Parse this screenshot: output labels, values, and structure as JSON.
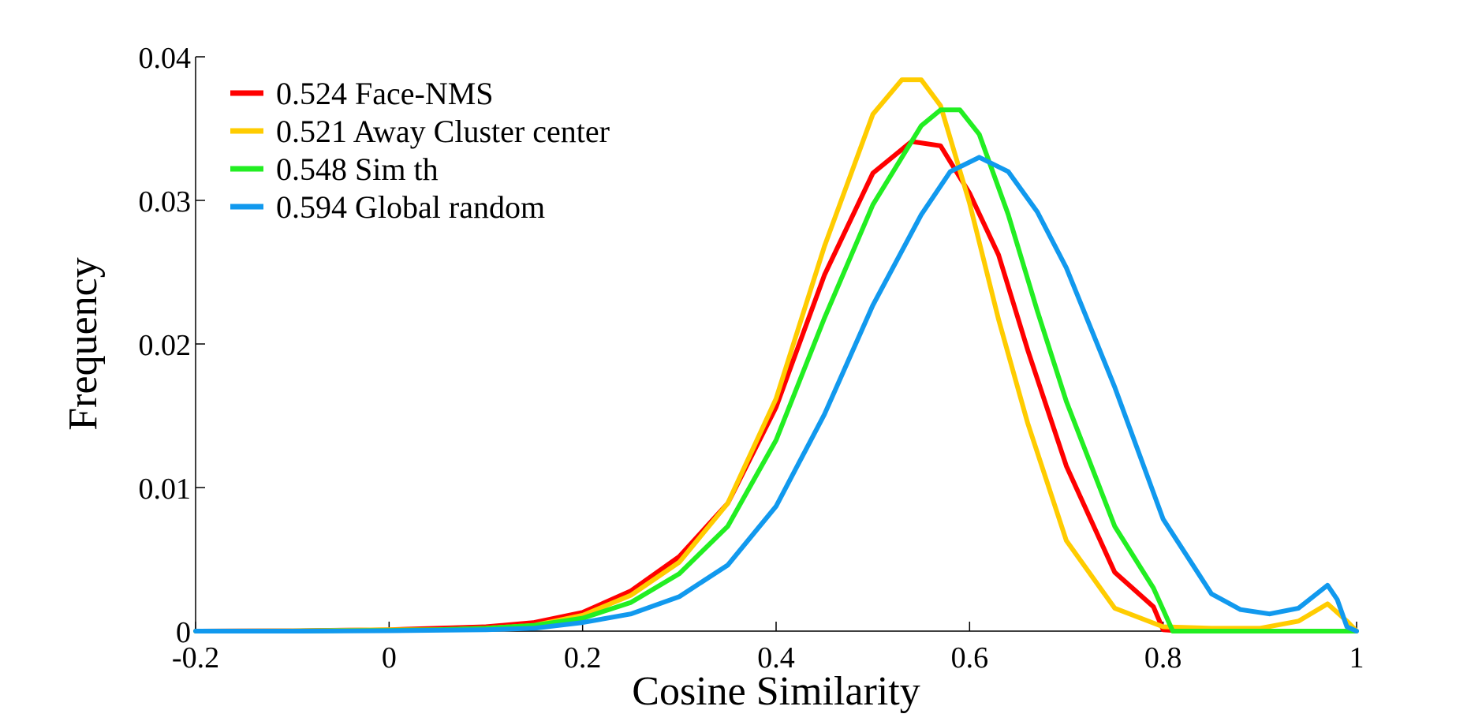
{
  "chart_data": {
    "type": "line",
    "title": "",
    "xlabel": "Cosine Similarity",
    "ylabel": "Frequency",
    "xlim": [
      -0.2,
      1
    ],
    "ylim": [
      0,
      0.04
    ],
    "xticks": [
      -0.2,
      0,
      0.2,
      0.4,
      0.6,
      0.8,
      1
    ],
    "xtick_labels": [
      "-0.2",
      "0",
      "0.2",
      "0.4",
      "0.6",
      "0.8",
      "1"
    ],
    "yticks": [
      0,
      0.01,
      0.02,
      0.03,
      0.04
    ],
    "ytick_labels": [
      "0",
      "0.01",
      "0.02",
      "0.03",
      "0.04"
    ],
    "grid": false,
    "legend_position": "top-left",
    "series": [
      {
        "name": "0.524 Face-NMS",
        "color": "#ff0000",
        "x": [
          -0.2,
          -0.1,
          0,
          0.05,
          0.1,
          0.15,
          0.2,
          0.25,
          0.3,
          0.35,
          0.4,
          0.45,
          0.5,
          0.54,
          0.57,
          0.6,
          0.63,
          0.66,
          0.7,
          0.75,
          0.79,
          0.8,
          0.82,
          0.85,
          0.9,
          0.95,
          0.99
        ],
        "y": [
          0,
          3e-05,
          0.0001,
          0.0002,
          0.0003,
          0.0006,
          0.0013,
          0.0028,
          0.0052,
          0.0089,
          0.0156,
          0.0248,
          0.0319,
          0.0341,
          0.0338,
          0.0305,
          0.0262,
          0.0196,
          0.0115,
          0.0041,
          0.0017,
          0.0001,
          0,
          0,
          0,
          0,
          0
        ]
      },
      {
        "name": "0.521 Away Cluster center",
        "color": "#ffcc00",
        "x": [
          -0.2,
          -0.1,
          0,
          0.05,
          0.1,
          0.15,
          0.2,
          0.25,
          0.3,
          0.35,
          0.4,
          0.45,
          0.5,
          0.53,
          0.55,
          0.57,
          0.6,
          0.63,
          0.66,
          0.7,
          0.75,
          0.8,
          0.85,
          0.9,
          0.94,
          0.97,
          0.99,
          1
        ],
        "y": [
          0,
          2e-05,
          0.0001,
          0.0001,
          0.0002,
          0.0004,
          0.0011,
          0.0025,
          0.0048,
          0.0089,
          0.0162,
          0.0268,
          0.036,
          0.0384,
          0.0384,
          0.0366,
          0.0298,
          0.0217,
          0.0145,
          0.0063,
          0.0016,
          0.0003,
          0.0002,
          0.0002,
          0.0007,
          0.0019,
          0.0007,
          0
        ]
      },
      {
        "name": "0.548 Sim th",
        "color": "#22ee22",
        "x": [
          -0.2,
          -0.1,
          0,
          0.05,
          0.1,
          0.15,
          0.2,
          0.25,
          0.3,
          0.35,
          0.4,
          0.45,
          0.5,
          0.55,
          0.57,
          0.59,
          0.61,
          0.64,
          0.67,
          0.7,
          0.75,
          0.79,
          0.8,
          0.81,
          0.85,
          0.9,
          0.95,
          1
        ],
        "y": [
          0,
          0,
          5e-05,
          0.0001,
          0.0002,
          0.0004,
          0.0009,
          0.002,
          0.004,
          0.0073,
          0.0133,
          0.0218,
          0.0297,
          0.0352,
          0.0363,
          0.0363,
          0.0346,
          0.029,
          0.0223,
          0.016,
          0.0073,
          0.003,
          0.0015,
          0,
          0,
          0,
          0,
          0
        ]
      },
      {
        "name": "0.594 Global random",
        "color": "#1199ee",
        "x": [
          -0.2,
          -0.1,
          0,
          0.05,
          0.1,
          0.15,
          0.2,
          0.25,
          0.3,
          0.35,
          0.4,
          0.45,
          0.5,
          0.55,
          0.58,
          0.61,
          0.64,
          0.67,
          0.7,
          0.75,
          0.8,
          0.85,
          0.88,
          0.91,
          0.94,
          0.97,
          0.98,
          0.99,
          1
        ],
        "y": [
          0,
          0,
          3e-05,
          6e-05,
          0.0001,
          0.0002,
          0.0006,
          0.0012,
          0.0024,
          0.0046,
          0.0087,
          0.0151,
          0.0227,
          0.029,
          0.032,
          0.033,
          0.032,
          0.0292,
          0.0253,
          0.017,
          0.0078,
          0.0026,
          0.0015,
          0.0012,
          0.0016,
          0.0032,
          0.0022,
          0.0003,
          0
        ]
      }
    ]
  }
}
